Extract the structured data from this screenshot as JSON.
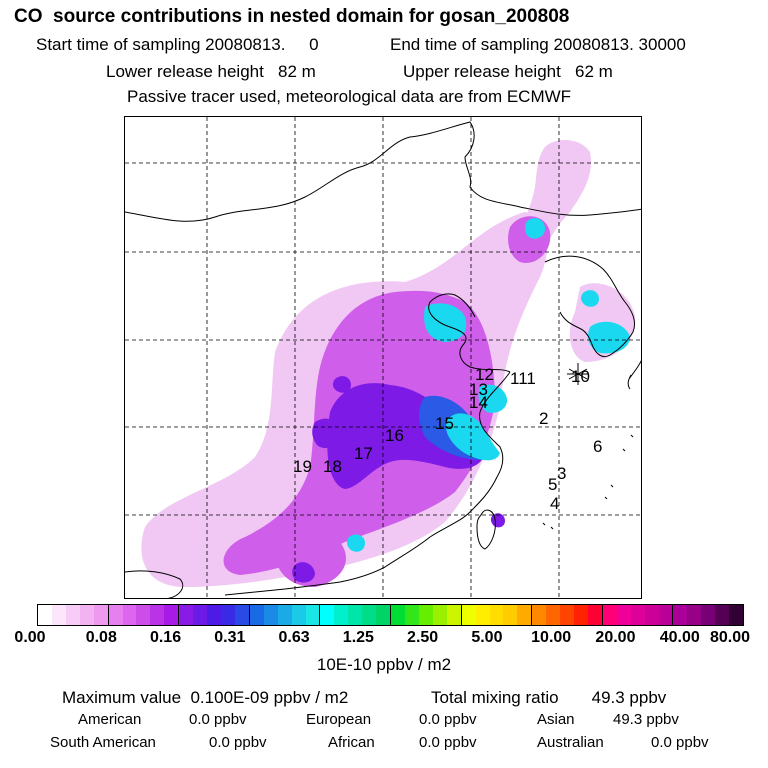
{
  "header": {
    "title": "CO  source contributions in nested domain for gosan_200808",
    "start_label": "Start time of sampling 20080813.     0",
    "end_label": "End time of sampling 20080813. 30000",
    "lower_label": "Lower release height   82 m",
    "upper_label": "Upper release height   62 m",
    "tracer_note": "Passive tracer used, meteorological data are from ECMWF"
  },
  "map": {
    "markers": [
      {
        "id": "12",
        "label": "12"
      },
      {
        "id": "13",
        "label": "13"
      },
      {
        "id": "14",
        "label": "14"
      },
      {
        "id": "111",
        "label": "111"
      },
      {
        "id": "10",
        "label": "10"
      },
      {
        "id": "2",
        "label": "2"
      },
      {
        "id": "15",
        "label": "15"
      },
      {
        "id": "16",
        "label": "16"
      },
      {
        "id": "17",
        "label": "17"
      },
      {
        "id": "18",
        "label": "18"
      },
      {
        "id": "19",
        "label": "19"
      },
      {
        "id": "6",
        "label": "6"
      },
      {
        "id": "3",
        "label": "3"
      },
      {
        "id": "5",
        "label": "5"
      },
      {
        "id": "4",
        "label": "4"
      }
    ],
    "station_symbol": "star-icon"
  },
  "colorbar": {
    "colors": [
      "#ffffff",
      "#fbe6fb",
      "#f7ccf7",
      "#f3b3f3",
      "#ef99ef",
      "#e680ef",
      "#dd66ef",
      "#cc4de8",
      "#bb33e6",
      "#a81ae6",
      "#8a1ae6",
      "#6c1ae6",
      "#4e1ae6",
      "#3a2ae6",
      "#2a4ae6",
      "#1a6ae6",
      "#1a8ae6",
      "#1aaae6",
      "#1acae6",
      "#1ae6e6",
      "#00ffff",
      "#00f0cc",
      "#00e6aa",
      "#00dd88",
      "#00d466",
      "#00dd33",
      "#33e61a",
      "#66ee00",
      "#99f000",
      "#ccf500",
      "#eeff00",
      "#ffee00",
      "#ffdd00",
      "#ffcc00",
      "#ffaa00",
      "#ff8800",
      "#ff6600",
      "#ff4400",
      "#ff2200",
      "#ff0033",
      "#ff0077",
      "#ee0099",
      "#dd0099",
      "#cc0099",
      "#bb0099",
      "#aa0099",
      "#990088",
      "#770077",
      "#550055",
      "#330033"
    ],
    "ticks": [
      "0.00",
      "0.08",
      "0.16",
      "0.31",
      "0.63",
      "1.25",
      "2.50",
      "5.00",
      "10.00",
      "20.00",
      "40.00",
      "80.00"
    ],
    "unit_label": "10E-10 ppbv / m2"
  },
  "stats": {
    "maximum": "Maximum value  0.100E-09 ppbv / m2",
    "total": "Total mixing ratio       49.3 ppbv",
    "american": "American",
    "american_val": "0.0 ppbv",
    "european": "European",
    "european_val": "0.0 ppbv",
    "asian": "Asian",
    "asian_val": "49.3 ppbv",
    "south_american": "South American",
    "south_american_val": "0.0 ppbv",
    "african": "African",
    "african_val": "0.0 ppbv",
    "australian": "Australian",
    "australian_val": "0.0 ppbv"
  }
}
